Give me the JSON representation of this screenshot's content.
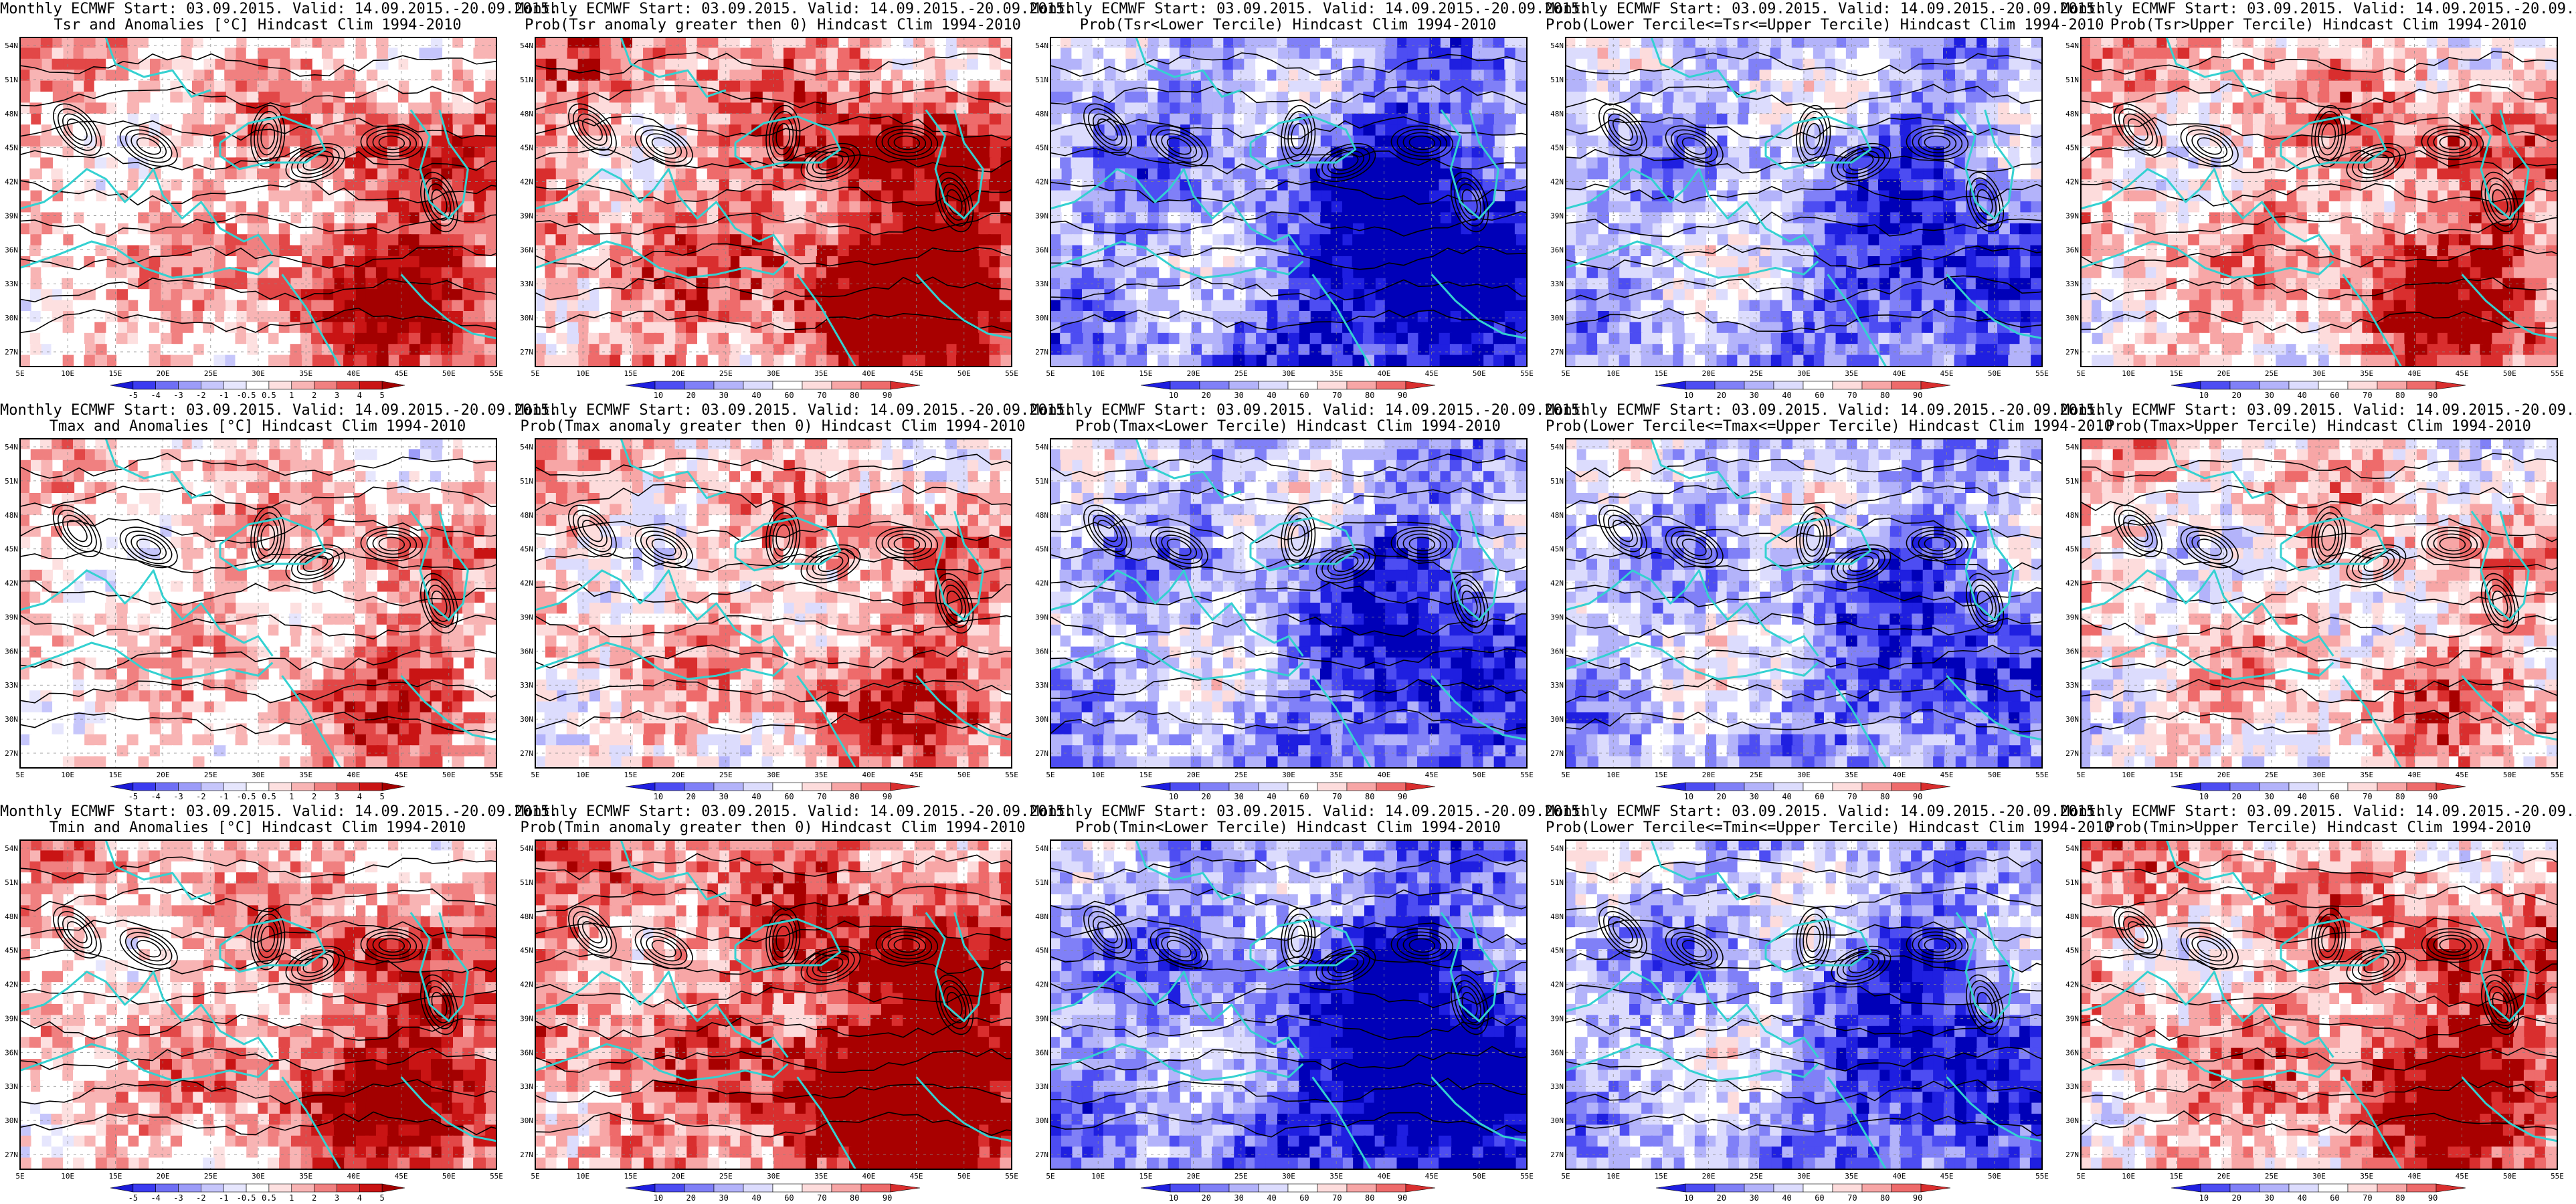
{
  "common": {
    "line1": "Monthly ECMWF Start: 03.09.2015. Valid: 14.09.2015.-20.09.2015.",
    "clim": "Hindcast Clim 1994-2010",
    "lat_labels": [
      "54N",
      "51N",
      "48N",
      "45N",
      "42N",
      "39N",
      "36N",
      "33N",
      "30N",
      "27N"
    ],
    "lon_labels": [
      "5E",
      "10E",
      "15E",
      "20E",
      "25E",
      "30E",
      "35E",
      "40E",
      "45E",
      "50E",
      "55E"
    ]
  },
  "colors": {
    "coastline": "#34d1d1",
    "contour": "#000000",
    "anom_scale": [
      "#1a1ad6",
      "#3b3bf0",
      "#6f6ff5",
      "#9c9cf8",
      "#c6c6fb",
      "#e6e6fd",
      "#ffffff",
      "#fde0e0",
      "#f8b4b4",
      "#f08080",
      "#e24747",
      "#c91414",
      "#a30000"
    ],
    "prob_scale": [
      "#0000b8",
      "#1f1fe0",
      "#4d4df2",
      "#8080f7",
      "#b3b3fa",
      "#dcdcfd",
      "#ffffff",
      "#fddcdc",
      "#f7a6a6",
      "#ee6b6b",
      "#d92e2e",
      "#a80000"
    ]
  },
  "colorbars": {
    "anom": [
      "-5",
      "-4",
      "-3",
      "-2",
      "-1",
      "-0.5",
      "0.5",
      "1",
      "2",
      "3",
      "4",
      "5"
    ],
    "prob": [
      "10",
      "20",
      "30",
      "40",
      "60",
      "70",
      "80",
      "90"
    ]
  },
  "rows": [
    {
      "var": "Tsr",
      "panels": [
        {
          "title2": "Tsr and Anomalies [°C] Hindcast Clim 1994-2010",
          "kind": "anom",
          "bias": 0.55
        },
        {
          "title2": "Prob(Tsr anomaly greater then 0) Hindcast Clim 1994-2010",
          "kind": "prob",
          "bias": 0.75
        },
        {
          "title2": "Prob(Tsr<Lower Tercile) Hindcast Clim 1994-2010",
          "kind": "prob",
          "bias": -0.85
        },
        {
          "title2": "Prob(Lower Tercile<=Tsr<=Upper Tercile) Hindcast Clim 1994-2010",
          "kind": "prob",
          "bias": -0.55
        },
        {
          "title2": "Prob(Tsr>Upper Tercile) Hindcast Clim 1994-2010",
          "kind": "prob",
          "bias": 0.45
        }
      ]
    },
    {
      "var": "Tmax",
      "panels": [
        {
          "title2": "Tmax and Anomalies [°C] Hindcast Clim 1994-2010",
          "kind": "anom",
          "bias": 0.35
        },
        {
          "title2": "Prob(Tmax anomaly greater then 0) Hindcast Clim 1994-2010",
          "kind": "prob",
          "bias": 0.35
        },
        {
          "title2": "Prob(Tmax<Lower Tercile) Hindcast Clim 1994-2010",
          "kind": "prob",
          "bias": -0.6
        },
        {
          "title2": "Prob(Lower Tercile<=Tmax<=Upper Tercile) Hindcast Clim 1994-2010",
          "kind": "prob",
          "bias": -0.5
        },
        {
          "title2": "Prob(Tmax>Upper Tercile) Hindcast Clim 1994-2010",
          "kind": "prob",
          "bias": 0.2
        }
      ]
    },
    {
      "var": "Tmin",
      "panels": [
        {
          "title2": "Tmin and Anomalies [°C] Hindcast Clim 1994-2010",
          "kind": "anom",
          "bias": 0.6
        },
        {
          "title2": "Prob(Tmin anomaly greater then 0) Hindcast Clim 1994-2010",
          "kind": "prob",
          "bias": 0.85
        },
        {
          "title2": "Prob(Tmin<Lower Tercile) Hindcast Clim 1994-2010",
          "kind": "prob",
          "bias": -0.9
        },
        {
          "title2": "Prob(Lower Tercile<=Tmin<=Upper Tercile) Hindcast Clim 1994-2010",
          "kind": "prob",
          "bias": -0.6
        },
        {
          "title2": "Prob(Tmin>Upper Tercile) Hindcast Clim 1994-2010",
          "kind": "prob",
          "bias": 0.55
        }
      ]
    }
  ]
}
